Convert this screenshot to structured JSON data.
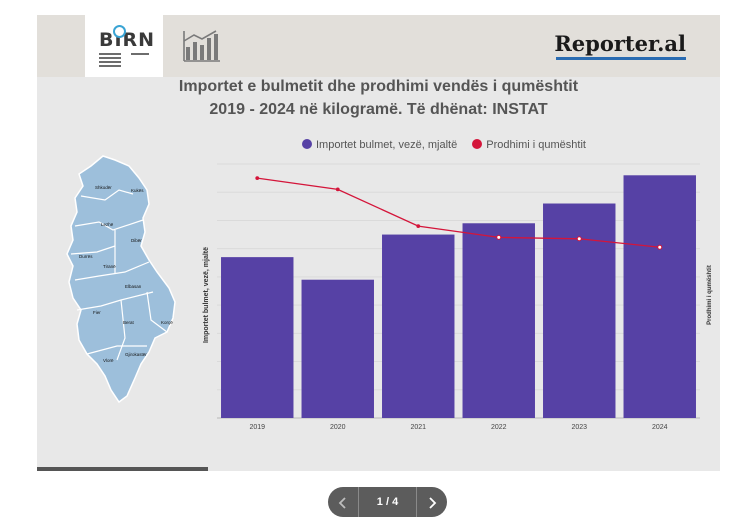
{
  "header": {
    "birn_logo_text": "BIRN",
    "reporter_logo_text": "Reporter.al"
  },
  "chart_data": {
    "type": "bar",
    "title_line1": "Importet e bulmetit dhe prodhimi vendës i qumështit",
    "title_line2": "2019 - 2024 në kilogramë. Të dhënat: INSTAT",
    "categories": [
      "2019",
      "2020",
      "2021",
      "2022",
      "2023",
      "2024"
    ],
    "series": [
      {
        "name": "Importet bulmet, vezë, mjaltë",
        "type": "bar",
        "color": "#5641a5",
        "axis": "left",
        "values": [
          57,
          49,
          65,
          69,
          76,
          86
        ]
      },
      {
        "name": "Prodhimi i qumështit",
        "type": "line",
        "color": "#d4153a",
        "axis": "right",
        "values": [
          85,
          81,
          68,
          64,
          63.5,
          60.5
        ]
      }
    ],
    "ylabel_left": "Importet bulmet, vezë, mjaltë",
    "ylabel_right": "Prodhimi i qumështit",
    "ylim_left": [
      0,
      90
    ],
    "ylim_right": [
      0,
      90
    ],
    "grid": true,
    "legend_position": "top-center"
  },
  "map": {
    "labels": [
      "Shkodër",
      "Kukës",
      "Lezhë",
      "Dibër",
      "Durrës",
      "Tiranë",
      "Elbasan",
      "Fier",
      "Berat",
      "Korçë",
      "Vlorë",
      "Gjirokastër"
    ]
  },
  "pager": {
    "count": "1 / 4",
    "prev_icon": "chevron-left-icon",
    "next_icon": "chevron-right-icon",
    "progress": 0.25
  }
}
